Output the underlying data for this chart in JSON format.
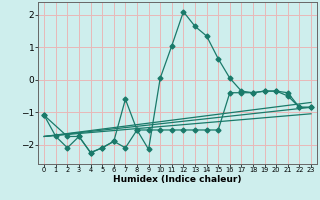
{
  "xlabel": "Humidex (Indice chaleur)",
  "xlim": [
    -0.5,
    23.5
  ],
  "ylim": [
    -2.6,
    2.4
  ],
  "yticks": [
    -2,
    -1,
    0,
    1,
    2
  ],
  "xticks": [
    0,
    1,
    2,
    3,
    4,
    5,
    6,
    7,
    8,
    9,
    10,
    11,
    12,
    13,
    14,
    15,
    16,
    17,
    18,
    19,
    20,
    21,
    22,
    23
  ],
  "bg_color": "#ceeeed",
  "grid_color": "#e8b8b8",
  "line_color": "#1a7a6a",
  "line1_x": [
    0,
    1,
    2,
    3,
    4,
    5,
    6,
    7,
    8,
    9,
    10,
    11,
    12,
    13,
    14,
    15,
    16,
    17,
    18,
    19,
    20,
    21,
    22,
    23
  ],
  "line1_y": [
    -1.1,
    -1.75,
    -2.1,
    -1.75,
    -2.25,
    -2.1,
    -1.9,
    -2.1,
    -1.55,
    -2.15,
    0.05,
    1.05,
    2.1,
    1.65,
    1.35,
    0.65,
    0.05,
    -0.35,
    -0.4,
    -0.35,
    -0.35,
    -0.5,
    -0.85,
    -0.85
  ],
  "line2_x": [
    0,
    2,
    3,
    4,
    5,
    6,
    7,
    8,
    9,
    10,
    11,
    12,
    13,
    14,
    15,
    16,
    17,
    18,
    19,
    20,
    21,
    22,
    23
  ],
  "line2_y": [
    -1.1,
    -1.75,
    -1.75,
    -2.25,
    -2.1,
    -1.9,
    -0.6,
    -1.55,
    -1.55,
    -1.55,
    -1.55,
    -1.55,
    -1.55,
    -1.55,
    -1.55,
    -0.4,
    -0.4,
    -0.4,
    -0.35,
    -0.35,
    -0.4,
    -0.85,
    -0.85
  ],
  "line3_x": [
    0,
    23
  ],
  "line3_y": [
    -1.75,
    -0.7
  ],
  "line4_x": [
    0,
    23
  ],
  "line4_y": [
    -1.75,
    -1.05
  ],
  "line5_x": [
    0,
    23
  ],
  "line5_y": [
    -1.75,
    -0.85
  ]
}
